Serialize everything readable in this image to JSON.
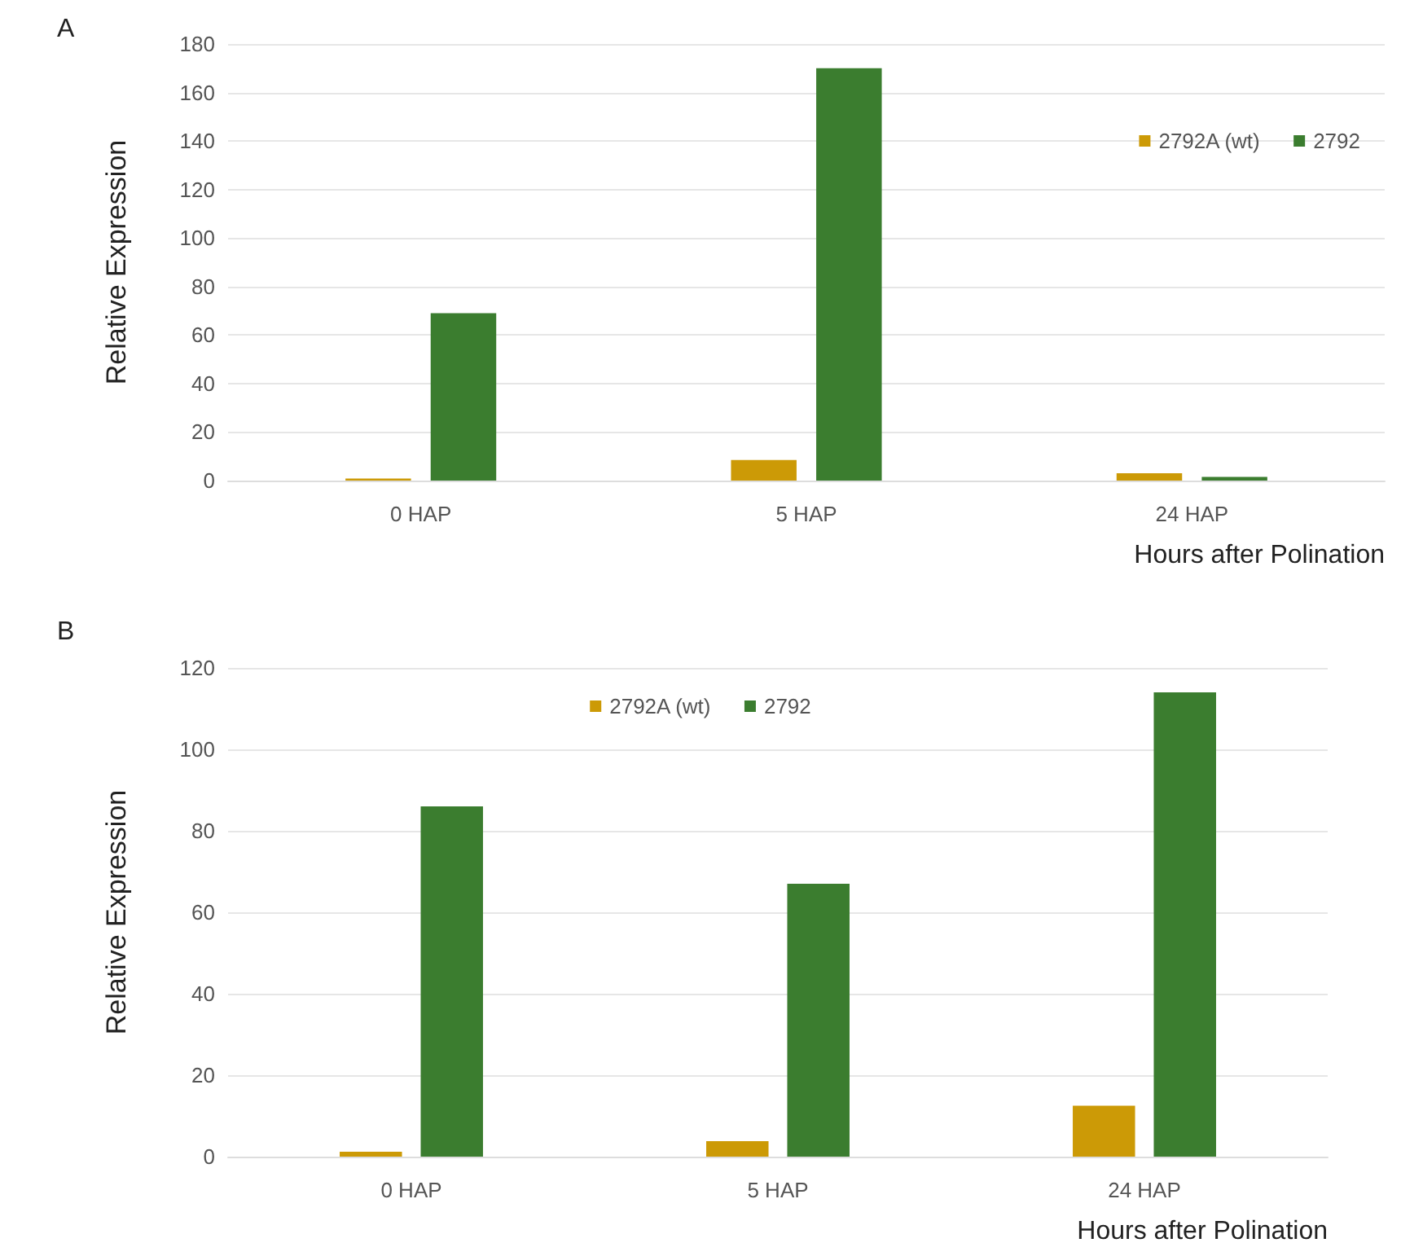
{
  "chart_data": [
    {
      "type": "bar",
      "title": "A",
      "categories": [
        "0 HAP",
        "5 HAP",
        "24 HAP"
      ],
      "xlabel": "Hours after Polination",
      "ylabel": "Relative Expression",
      "ylim": [
        0,
        180
      ],
      "yticks": [
        0,
        20,
        40,
        60,
        80,
        100,
        120,
        140,
        160,
        180
      ],
      "grid": "y",
      "legend": "top right",
      "series": [
        {
          "name": "2792A (wt)",
          "color": "#cc9a06",
          "values": [
            0.8,
            8.5,
            3
          ]
        },
        {
          "name": "2792",
          "color": "#3b7d2f",
          "values": [
            69,
            170,
            1.5
          ]
        }
      ]
    },
    {
      "type": "bar",
      "title": "B",
      "categories": [
        "0 HAP",
        "5 HAP",
        "24 HAP"
      ],
      "xlabel": "Hours after Polination",
      "ylabel": "Relative Expression",
      "ylim": [
        0,
        120
      ],
      "yticks": [
        0,
        20,
        40,
        60,
        80,
        100,
        120
      ],
      "grid": "y",
      "legend": "top",
      "series": [
        {
          "name": "2792A (wt)",
          "color": "#cc9a06",
          "values": [
            1.2,
            3.8,
            12.5
          ]
        },
        {
          "name": "2792",
          "color": "#3b7d2f",
          "values": [
            86,
            67,
            114
          ]
        }
      ]
    }
  ]
}
